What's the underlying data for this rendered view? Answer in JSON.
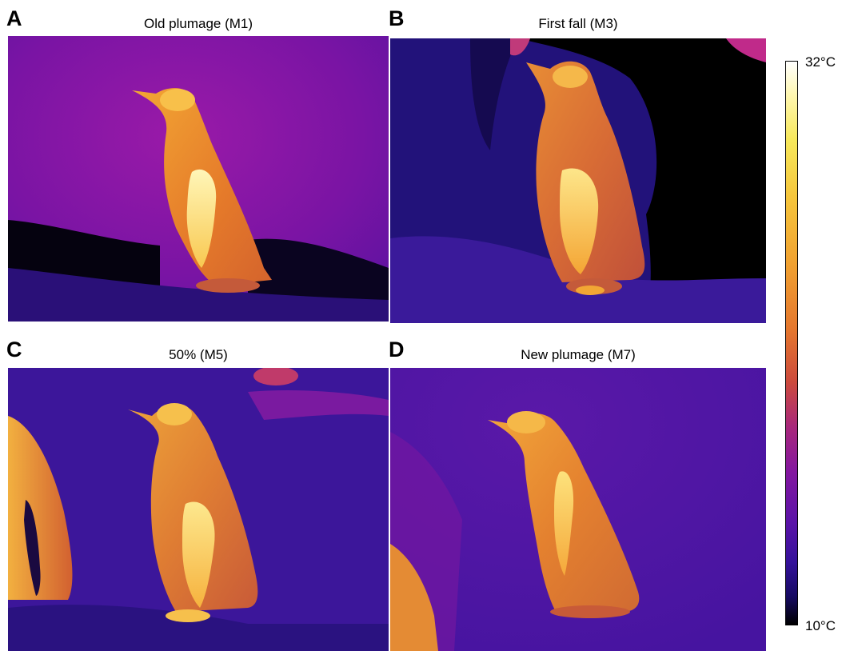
{
  "panels": [
    {
      "letter": "A",
      "title": "Old plumage (M1)"
    },
    {
      "letter": "B",
      "title": "First fall (M3)"
    },
    {
      "letter": "C",
      "title": "50% (M5)"
    },
    {
      "letter": "D",
      "title": "New plumage (M7)"
    }
  ],
  "colorbar": {
    "max_label": "32°C",
    "min_label": "10°C",
    "colormap": "iron (black-purple-orange-yellow-white)"
  },
  "colors": {
    "background_cold": "#3a1580",
    "ground_shadow": "#000000",
    "body_warm": "#f29a2e",
    "hot_spot": "#fff2a0"
  }
}
